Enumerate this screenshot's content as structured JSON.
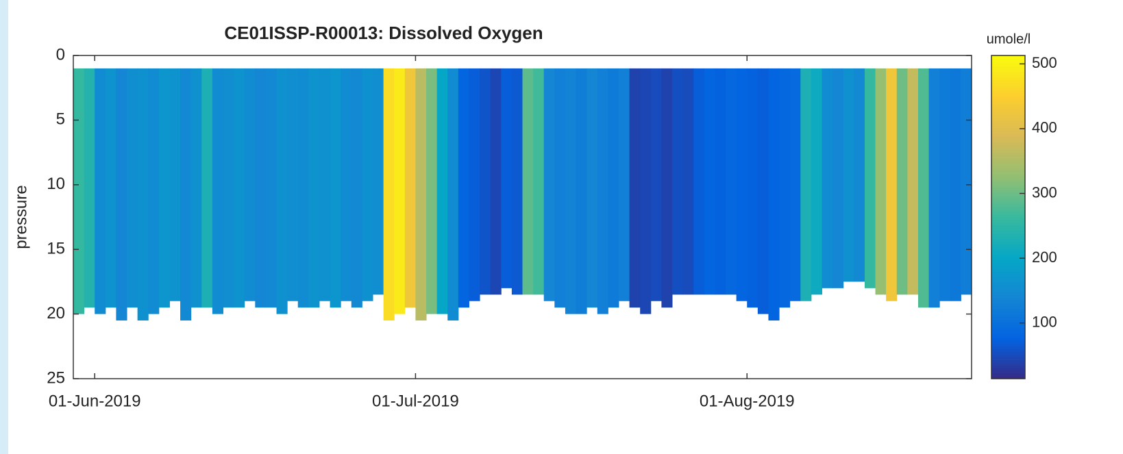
{
  "chart_data": {
    "type": "pcolor",
    "title": "CE01ISSP-R00013:   Dissolved Oxygen",
    "ylabel": "pressure",
    "colorbar_label": "umole/l",
    "x": [
      "2019-05-30",
      "2019-05-31",
      "2019-06-01",
      "2019-06-02",
      "2019-06-03",
      "2019-06-04",
      "2019-06-05",
      "2019-06-06",
      "2019-06-07",
      "2019-06-08",
      "2019-06-09",
      "2019-06-10",
      "2019-06-11",
      "2019-06-12",
      "2019-06-13",
      "2019-06-14",
      "2019-06-15",
      "2019-06-16",
      "2019-06-17",
      "2019-06-18",
      "2019-06-19",
      "2019-06-20",
      "2019-06-21",
      "2019-06-22",
      "2019-06-23",
      "2019-06-24",
      "2019-06-25",
      "2019-06-26",
      "2019-06-27",
      "2019-06-28",
      "2019-06-29",
      "2019-06-30",
      "2019-07-01",
      "2019-07-02",
      "2019-07-03",
      "2019-07-04",
      "2019-07-05",
      "2019-07-06",
      "2019-07-07",
      "2019-07-08",
      "2019-07-09",
      "2019-07-10",
      "2019-07-11",
      "2019-07-12",
      "2019-07-13",
      "2019-07-14",
      "2019-07-15",
      "2019-07-16",
      "2019-07-17",
      "2019-07-18",
      "2019-07-19",
      "2019-07-20",
      "2019-07-21",
      "2019-07-22",
      "2019-07-23",
      "2019-07-24",
      "2019-07-25",
      "2019-07-26",
      "2019-07-27",
      "2019-07-28",
      "2019-07-29",
      "2019-07-30",
      "2019-07-31",
      "2019-08-01",
      "2019-08-02",
      "2019-08-03",
      "2019-08-04",
      "2019-08-05",
      "2019-08-06",
      "2019-08-07",
      "2019-08-08",
      "2019-08-09",
      "2019-08-10",
      "2019-08-11",
      "2019-08-12",
      "2019-08-13",
      "2019-08-14",
      "2019-08-15",
      "2019-08-16",
      "2019-08-17",
      "2019-08-18",
      "2019-08-19",
      "2019-08-20",
      "2019-08-21"
    ],
    "values": [
      260,
      240,
      150,
      165,
      140,
      155,
      160,
      150,
      170,
      165,
      145,
      160,
      230,
      150,
      155,
      165,
      150,
      140,
      145,
      160,
      155,
      150,
      165,
      160,
      170,
      150,
      145,
      160,
      155,
      470,
      490,
      430,
      360,
      310,
      200,
      150,
      80,
      70,
      60,
      45,
      70,
      65,
      290,
      270,
      140,
      130,
      135,
      125,
      140,
      130,
      120,
      130,
      40,
      45,
      50,
      40,
      55,
      50,
      70,
      80,
      75,
      85,
      80,
      75,
      70,
      80,
      85,
      90,
      230,
      210,
      150,
      140,
      160,
      145,
      260,
      330,
      430,
      300,
      370,
      280,
      130,
      120,
      115,
      125
    ],
    "bottom": [
      20,
      19.5,
      20,
      19.5,
      20.5,
      19.5,
      20.5,
      20,
      19.5,
      19,
      20.5,
      19.5,
      19.5,
      20,
      19.5,
      19.5,
      19,
      19.5,
      19.5,
      20,
      19,
      19.5,
      19.5,
      19,
      19.5,
      19,
      19.5,
      19,
      18.5,
      20.5,
      20,
      19.5,
      20.5,
      20,
      20,
      20.5,
      19.5,
      19,
      18.5,
      18.5,
      18,
      18.5,
      18.5,
      18.5,
      19,
      19.5,
      20,
      20,
      19.5,
      20,
      19.5,
      19,
      19.5,
      20,
      19,
      19.5,
      18.5,
      18.5,
      18.5,
      18.5,
      18.5,
      18.5,
      19,
      19.5,
      20,
      20.5,
      19.5,
      19,
      19,
      18.5,
      18,
      18,
      17.5,
      17.5,
      18,
      18.5,
      19,
      18.5,
      18.5,
      19.5,
      19.5,
      19,
      19,
      18.5
    ],
    "top": 1,
    "xlim": [
      "2019-05-30",
      "2019-08-22"
    ],
    "xticks": [
      {
        "value": "2019-06-01",
        "label": "01-Jun-2019"
      },
      {
        "value": "2019-07-01",
        "label": "01-Jul-2019"
      },
      {
        "value": "2019-08-01",
        "label": "01-Aug-2019"
      }
    ],
    "ylim": [
      0,
      25
    ],
    "yticks": [
      0,
      5,
      10,
      15,
      20,
      25
    ],
    "y_reversed": true,
    "clim": [
      14,
      513
    ],
    "cticks": [
      100,
      200,
      300,
      400,
      500
    ],
    "colormap": [
      "#352a87",
      "#0363e1",
      "#1485d4",
      "#06a7c6",
      "#38b99e",
      "#92bf73",
      "#d9ba56",
      "#fcce2e",
      "#f9fb0e"
    ]
  }
}
